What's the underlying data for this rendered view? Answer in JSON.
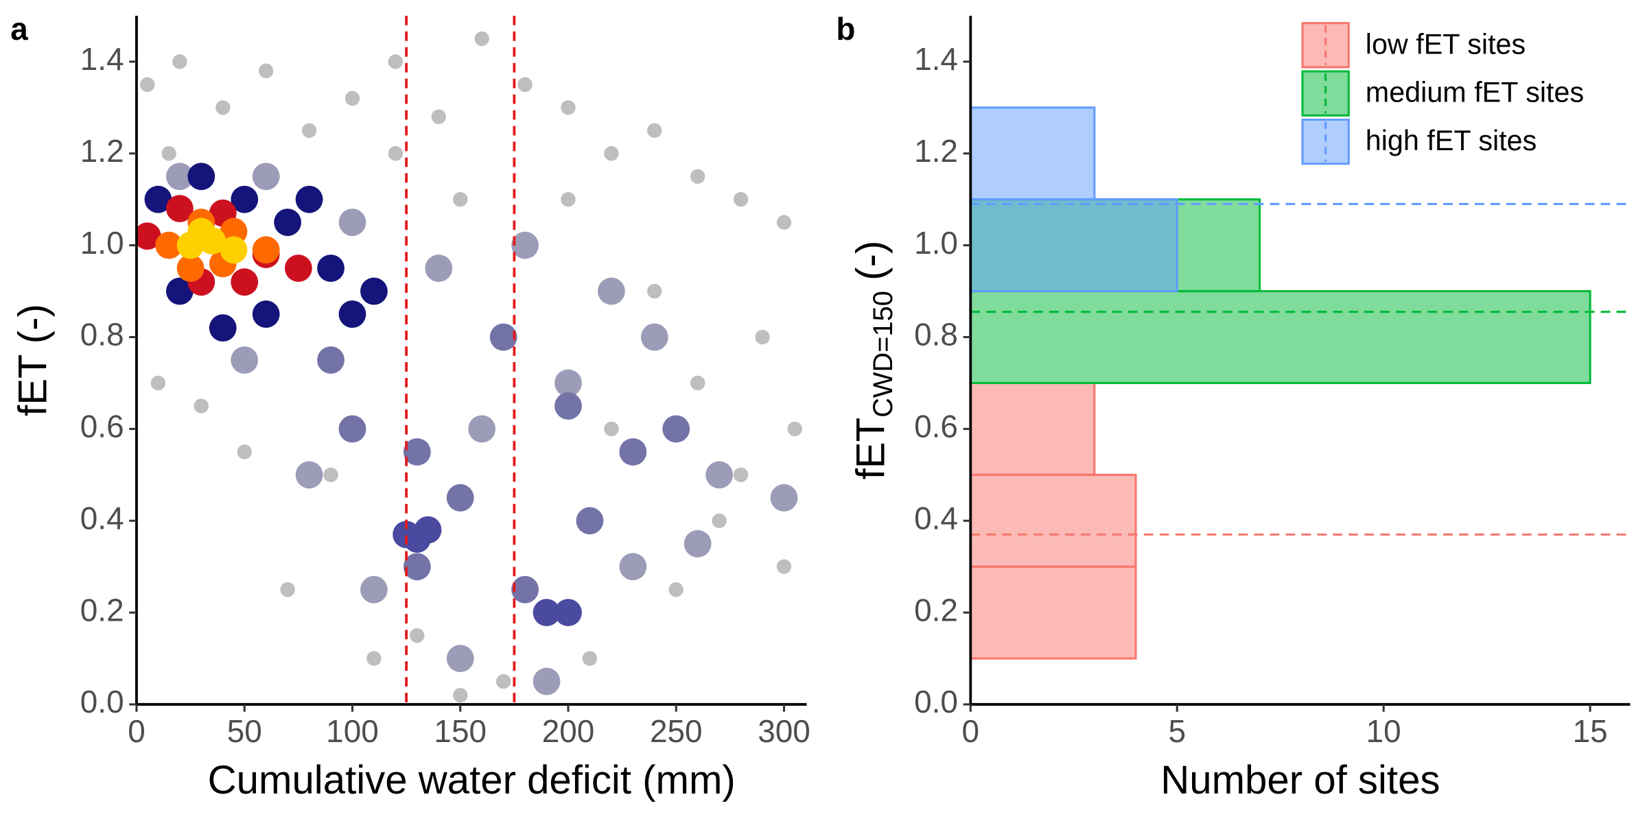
{
  "chart_data": [
    {
      "type": "scatter",
      "panel": "a",
      "x_label": "Cumulative water deficit (mm)",
      "y_label": "fET (-)",
      "xlim": [
        0,
        310.5
      ],
      "ylim": [
        0,
        1.5
      ],
      "xticks": [
        0,
        50,
        100,
        150,
        200,
        250,
        300
      ],
      "yticks": [
        {
          "value": 0,
          "label": "0.0"
        },
        0.2,
        0.4,
        0.6,
        0.8,
        {
          "value": 1,
          "label": "1.0"
        },
        1.2,
        1.4
      ],
      "vlines": [
        125,
        175
      ],
      "vline_color": "#e41a1c",
      "series": [
        {
          "color": "#bebebe",
          "x": [
            5,
            20,
            40,
            60,
            80,
            100,
            120,
            140,
            160,
            180,
            200,
            220,
            240,
            260,
            280,
            300,
            10,
            50,
            90,
            130,
            170,
            210,
            250,
            290,
            305,
            270,
            230,
            190,
            150,
            110,
            70,
            30,
            15,
            200,
            240,
            280,
            300,
            260,
            220,
            180,
            150,
            120
          ],
          "values": [
            1.35,
            1.4,
            1.3,
            1.38,
            1.25,
            1.32,
            1.4,
            1.28,
            1.45,
            1.35,
            1.3,
            1.2,
            1.25,
            1.15,
            1.1,
            1.05,
            0.7,
            0.55,
            0.5,
            0.15,
            0.05,
            0.1,
            0.25,
            0.8,
            0.6,
            0.4,
            0.3,
            0.05,
            0.02,
            0.1,
            0.25,
            0.65,
            1.2,
            1.1,
            0.9,
            0.5,
            0.3,
            0.7,
            0.6,
            1.0,
            1.1,
            1.2
          ]
        },
        {
          "color": "#9c9cb8",
          "x": [
            20,
            60,
            100,
            140,
            180,
            220,
            160,
            200,
            240,
            270,
            300,
            110,
            150,
            190,
            230,
            260,
            80,
            50
          ],
          "values": [
            1.15,
            1.15,
            1.05,
            0.95,
            1.0,
            0.9,
            0.6,
            0.7,
            0.8,
            0.5,
            0.45,
            0.25,
            0.1,
            0.05,
            0.3,
            0.35,
            0.5,
            0.75
          ]
        },
        {
          "color": "#7373a8",
          "x": [
            90,
            130,
            170,
            200,
            230,
            130,
            180,
            210,
            150,
            100,
            250
          ],
          "values": [
            0.75,
            0.55,
            0.8,
            0.65,
            0.55,
            0.3,
            0.25,
            0.4,
            0.45,
            0.6,
            0.6
          ]
        },
        {
          "color": "#4a4aa0",
          "x": [
            125,
            130,
            135,
            190,
            200
          ],
          "values": [
            0.37,
            0.36,
            0.38,
            0.2,
            0.2
          ]
        },
        {
          "color": "#14147a",
          "x": [
            10,
            30,
            50,
            70,
            90,
            100,
            110,
            60,
            20,
            80,
            40
          ],
          "values": [
            1.1,
            1.15,
            1.1,
            1.05,
            0.95,
            0.85,
            0.9,
            0.85,
            0.9,
            1.1,
            0.82
          ]
        },
        {
          "color": "#cc1020",
          "x": [
            5,
            20,
            40,
            60,
            75,
            30,
            50
          ],
          "values": [
            1.02,
            1.08,
            1.07,
            0.98,
            0.95,
            0.92,
            0.92
          ]
        },
        {
          "color": "#ff6a00",
          "x": [
            15,
            30,
            45,
            60,
            25,
            40
          ],
          "values": [
            1.0,
            1.05,
            1.03,
            0.99,
            0.95,
            0.96
          ]
        },
        {
          "color": "#ffd000",
          "x": [
            25,
            35,
            45,
            30
          ],
          "values": [
            1.0,
            1.01,
            0.99,
            1.03
          ]
        }
      ]
    },
    {
      "type": "histogram",
      "orientation": "horizontal",
      "panel": "b",
      "x_label": "Number of sites",
      "y_label": "fET",
      "y_label_sub": "CWD=150",
      "y_label_suffix": "(-)",
      "xlim": [
        0,
        15.97
      ],
      "ylim": [
        0,
        1.5
      ],
      "xticks": [
        0,
        5,
        10,
        15
      ],
      "yticks": [
        {
          "value": 0,
          "label": "0.0"
        },
        0.2,
        0.4,
        0.6,
        0.8,
        {
          "value": 1,
          "label": "1.0"
        },
        1.2,
        1.4
      ],
      "bins": [
        0.1,
        0.3,
        0.5,
        0.7,
        0.9,
        1.1,
        1.3
      ],
      "legend": "top-right",
      "series": [
        {
          "name": "low fET sites",
          "color": "#f8766d",
          "values": [
            4,
            4,
            3,
            0,
            0,
            0
          ],
          "mean": 0.37
        },
        {
          "name": "medium fET sites",
          "color": "#00ba38",
          "values": [
            0,
            0,
            0,
            15,
            7,
            0
          ],
          "mean": 0.855
        },
        {
          "name": "high fET sites",
          "color": "#619cff",
          "values": [
            0,
            0,
            0,
            0,
            5,
            3
          ],
          "mean": 1.09
        }
      ]
    }
  ]
}
